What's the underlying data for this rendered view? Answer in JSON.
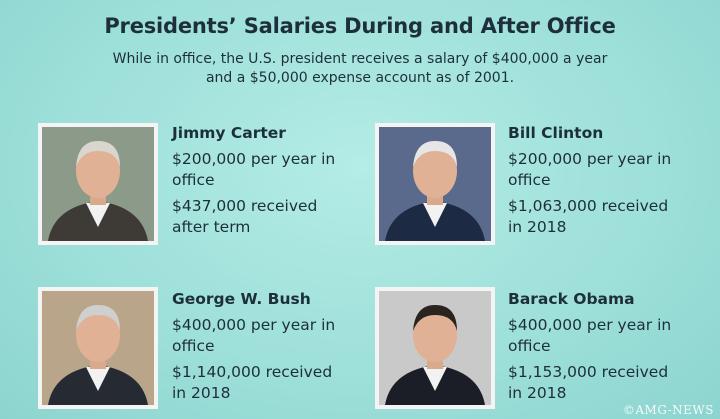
{
  "header": {
    "title": "Presidents’ Salaries During and After Office",
    "subtitle": "While in office, the U.S. president receives a salary of $400,000 a year and a $50,000 expense account as of 2001."
  },
  "people": [
    {
      "name": "Jimmy Carter",
      "in_office": "$200,000 per year in office",
      "after_office": "$437,000 received after term"
    },
    {
      "name": "Bill Clinton",
      "in_office": "$200,000 per year in office",
      "after_office": "$1,063,000 received in 2018"
    },
    {
      "name": "George W. Bush",
      "in_office": "$400,000 per year in office",
      "after_office": "$1,140,000 received in 2018"
    },
    {
      "name": "Barack Obama",
      "in_office": "$400,000 per year in office",
      "after_office": "$1,153,000 received in 2018"
    }
  ],
  "watermark": "©AMG-NEWS"
}
